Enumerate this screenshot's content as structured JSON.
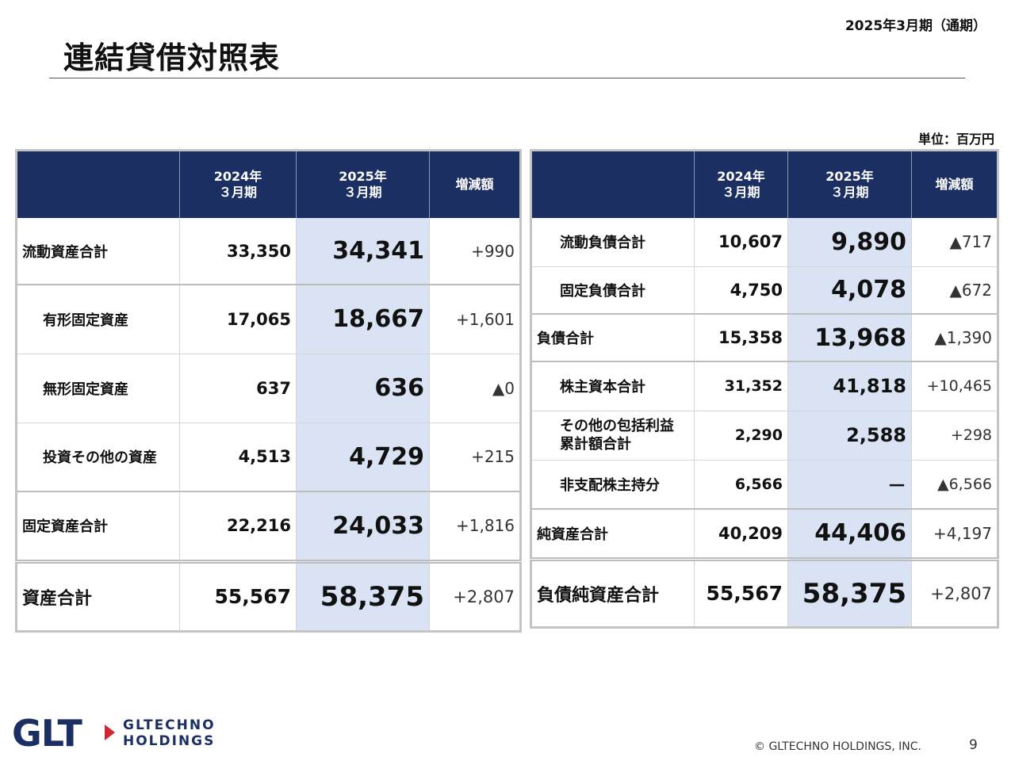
{
  "header": {
    "title": "連結貸借対照表",
    "period": "2025年3月期（通期）",
    "unit": "単位：百万円"
  },
  "assets_table": {
    "columns": {
      "prev_line1": "2024年",
      "prev_line2": "３月期",
      "cur_line1": "2025年",
      "cur_line2": "３月期",
      "diff": "増減額"
    },
    "rows": [
      {
        "label": "流動資産合計",
        "prev": "33,350",
        "cur": "34,341",
        "diff": "+990"
      },
      {
        "label": "有形固定資産",
        "prev": "17,065",
        "cur": "18,667",
        "diff": "+1,601"
      },
      {
        "label": "無形固定資産",
        "prev": "637",
        "cur": "636",
        "diff": "▲0"
      },
      {
        "label": "投資その他の資産",
        "prev": "4,513",
        "cur": "4,729",
        "diff": "+215"
      },
      {
        "label": "固定資産合計",
        "prev": "22,216",
        "cur": "24,033",
        "diff": "+1,816"
      },
      {
        "label": "資産合計",
        "prev": "55,567",
        "cur": "58,375",
        "diff": "+2,807"
      }
    ]
  },
  "liabilities_table": {
    "columns": {
      "prev_line1": "2024年",
      "prev_line2": "３月期",
      "cur_line1": "2025年",
      "cur_line2": "３月期",
      "diff": "増減額"
    },
    "rows": [
      {
        "label": "流動負債合計",
        "prev": "10,607",
        "cur": "9,890",
        "diff": "▲717"
      },
      {
        "label": "固定負債合計",
        "prev": "4,750",
        "cur": "4,078",
        "diff": "▲672"
      },
      {
        "label": "負債合計",
        "prev": "15,358",
        "cur": "13,968",
        "diff": "▲1,390"
      },
      {
        "label": "株主資本合計",
        "prev": "31,352",
        "cur": "41,818",
        "diff": "+10,465"
      },
      {
        "label_line1": "その他の包括利益",
        "label_line2": "累計額合計",
        "prev": "2,290",
        "cur": "2,588",
        "diff": "+298"
      },
      {
        "label": "非支配株主持分",
        "prev": "6,566",
        "cur": "－",
        "diff": "▲6,566"
      },
      {
        "label": "純資産合計",
        "prev": "40,209",
        "cur": "44,406",
        "diff": "+4,197"
      },
      {
        "label": "負債純資産合計",
        "prev": "55,567",
        "cur": "58,375",
        "diff": "+2,807"
      }
    ]
  },
  "footer": {
    "logo_mark": "GLT",
    "logo_line1": "GLTECHNO",
    "logo_line2": "HOLDINGS",
    "copyright": "© GLTECHNO HOLDINGS, INC.",
    "page_number": "9"
  },
  "colors": {
    "header_navy": "#1c2f62",
    "highlight_blue": "#dae3f3",
    "logo_red": "#d62333"
  }
}
